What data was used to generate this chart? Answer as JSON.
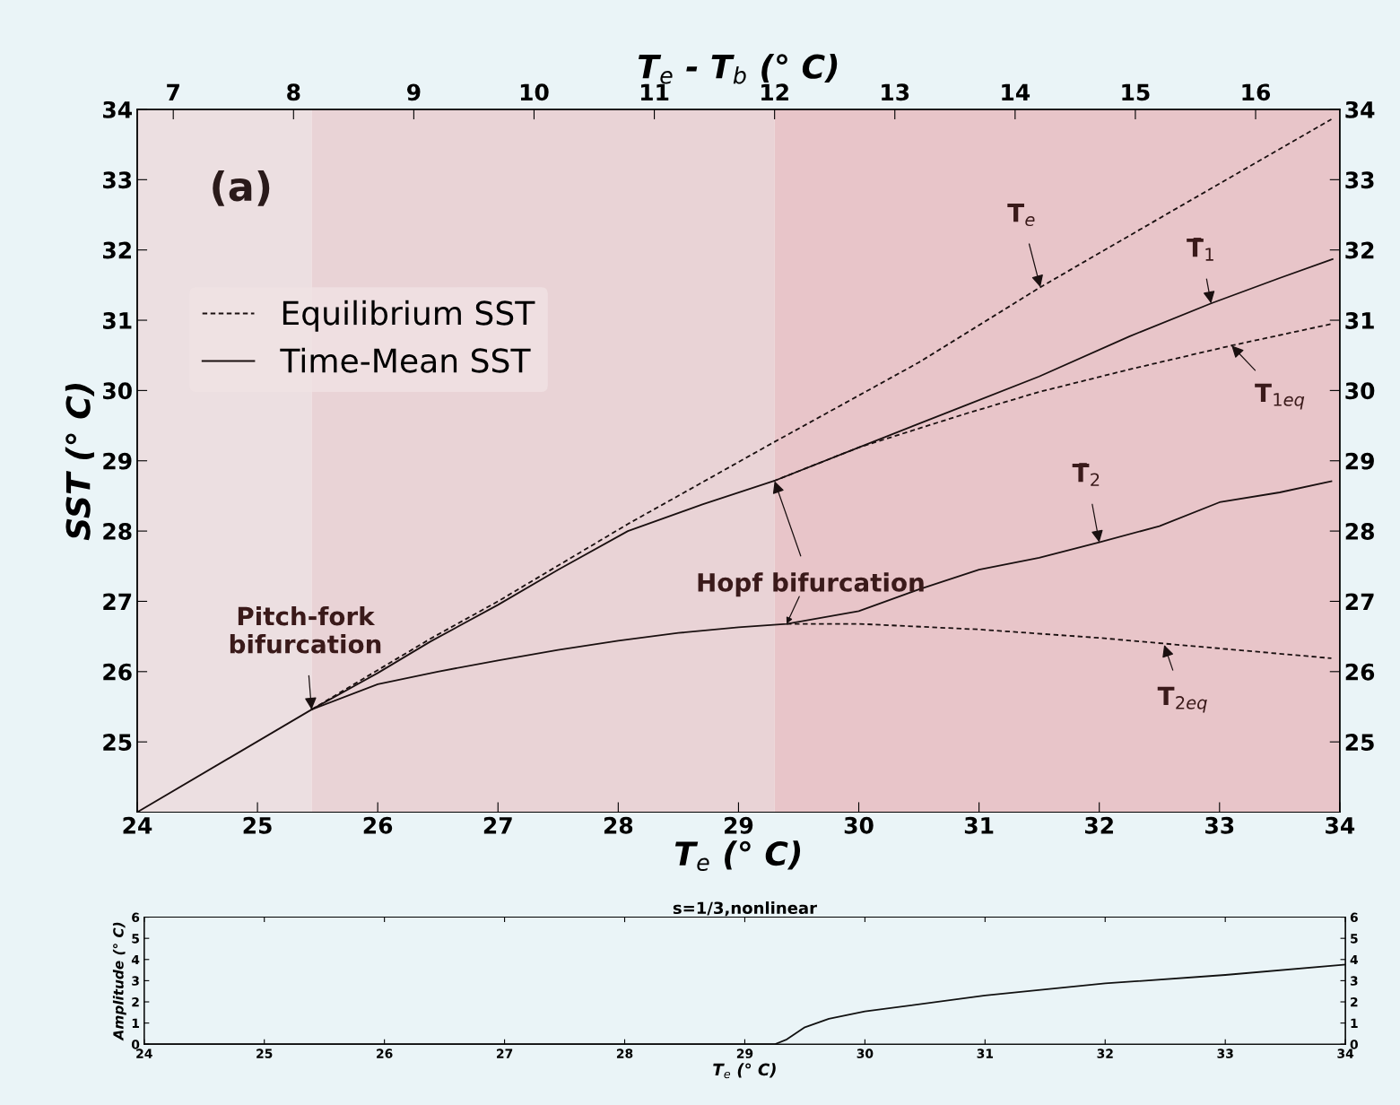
{
  "chart_data": [
    {
      "type": "line",
      "xlabel": "T$_{e}$ (° C)",
      "ylabel": "SST (° C)",
      "x2label": "T$_{e}$ - T$_{b}$ (° C)",
      "xlim": [
        24,
        34
      ],
      "xticks": [
        24,
        25,
        26,
        27,
        28,
        29,
        30,
        31,
        32,
        33,
        34
      ],
      "ylim": [
        24,
        34
      ],
      "yticks": [
        25,
        26,
        27,
        28,
        29,
        30,
        31,
        32,
        33,
        34
      ],
      "y2lim": [
        24,
        34
      ],
      "y2ticks": [
        25,
        26,
        27,
        28,
        29,
        30,
        31,
        32,
        33,
        34
      ],
      "x2lim": [
        6.7,
        16.7
      ],
      "x2ticks": [
        7,
        8,
        9,
        10,
        11,
        12,
        13,
        14,
        15,
        16
      ],
      "grid": false,
      "legend": "top left",
      "series": [
        {
          "name": "Equilibrium SST",
          "color": "#1a1010",
          "line_style": "dashed",
          "x": [
            25.45,
            26.44,
            27,
            28.08,
            29.29,
            30.5,
            31.51,
            32.5,
            33.93
          ],
          "values": [
            25.46,
            26.47,
            27.0,
            28.1,
            29.26,
            30.4,
            31.47,
            32.45,
            33.86
          ]
        },
        {
          "name": "Time-Mean SST",
          "color": "#1a1010",
          "line_style": "solid",
          "x": [
            24,
            25.45,
            26,
            26.44,
            27,
            27.5,
            28.08,
            28.7,
            29.29,
            30,
            30.89,
            31.5,
            32.25,
            32.93,
            33.5,
            33.94
          ],
          "values": [
            24,
            25.46,
            25.98,
            26.43,
            26.95,
            27.45,
            28.0,
            28.38,
            28.71,
            29.19,
            29.79,
            30.2,
            30.77,
            31.24,
            31.6,
            31.87
          ]
        },
        {
          "color": "#1a1010",
          "line_style": "dashed",
          "x": [
            29.29,
            30,
            30.89,
            31.5,
            32.25,
            33.1,
            33.94
          ],
          "values": [
            28.71,
            29.19,
            29.67,
            29.98,
            30.3,
            30.64,
            30.95
          ]
        },
        {
          "color": "#1a1010",
          "line_style": "solid",
          "x": [
            25.45,
            26,
            26.5,
            27,
            27.5,
            28,
            28.5,
            29,
            29.4,
            30,
            30.5,
            31,
            31.5,
            32,
            32.5,
            33,
            33.5,
            33.93
          ],
          "values": [
            25.46,
            25.82,
            26.0,
            26.16,
            26.31,
            26.44,
            26.55,
            26.63,
            26.68,
            26.86,
            27.17,
            27.45,
            27.62,
            27.84,
            28.07,
            28.41,
            28.55,
            28.71
          ]
        },
        {
          "color": "#1a1010",
          "line_style": "dashed",
          "x": [
            29.4,
            30,
            31,
            32,
            33,
            33.93
          ],
          "values": [
            26.68,
            26.68,
            26.6,
            26.48,
            26.33,
            26.19
          ]
        }
      ],
      "bands": [
        {
          "axis": "x",
          "from": 24,
          "to": 25.45,
          "color": "#ecdfe1"
        },
        {
          "axis": "x",
          "from": 25.45,
          "to": 29.3,
          "color": "#e9d3d6"
        },
        {
          "axis": "x",
          "from": 29.3,
          "to": 34,
          "color": "#e8c5c9"
        }
      ],
      "annotations": [
        "(a)",
        {
          "text": "Pitch-fork\nbifurcation",
          "x": 25.45,
          "y": 25.46
        },
        {
          "text": "Hopf bifurcation",
          "x": 29.3,
          "y": 28.71
        },
        {
          "text": "T$_{e}$",
          "x": 31.51,
          "y": 31.47
        },
        {
          "text": "T̄$_{1}$",
          "x": 32.93,
          "y": 31.24
        },
        {
          "text": "T$_{1eq}$",
          "x": 33.1,
          "y": 30.64
        },
        {
          "text": "T̄$_{2}$",
          "x": 32,
          "y": 27.84
        },
        {
          "text": "T$_{2eq}$",
          "x": 32.54,
          "y": 26.38
        }
      ]
    },
    {
      "type": "line",
      "title": "s=1/3,nonlinear",
      "xlabel": "T$_{e}$ (° C)",
      "ylabel": "Amplitude (° C)",
      "xlim": [
        24,
        34
      ],
      "xticks": [
        24,
        25,
        26,
        27,
        28,
        29,
        30,
        31,
        32,
        33,
        34
      ],
      "ylim": [
        0,
        6
      ],
      "yticks": [
        0,
        1,
        2,
        3,
        4,
        5,
        6
      ],
      "y2lim": [
        0,
        6
      ],
      "y2ticks": [
        0,
        1,
        2,
        3,
        4,
        5,
        6
      ],
      "grid": false,
      "series": [
        {
          "color": "#111111",
          "line_style": "solid",
          "x": [
            24,
            29.25,
            29.35,
            29.5,
            29.7,
            30,
            31,
            32,
            33,
            34
          ],
          "values": [
            0,
            0,
            0.23,
            0.8,
            1.2,
            1.55,
            2.3,
            2.87,
            3.27,
            3.76
          ]
        }
      ]
    }
  ]
}
